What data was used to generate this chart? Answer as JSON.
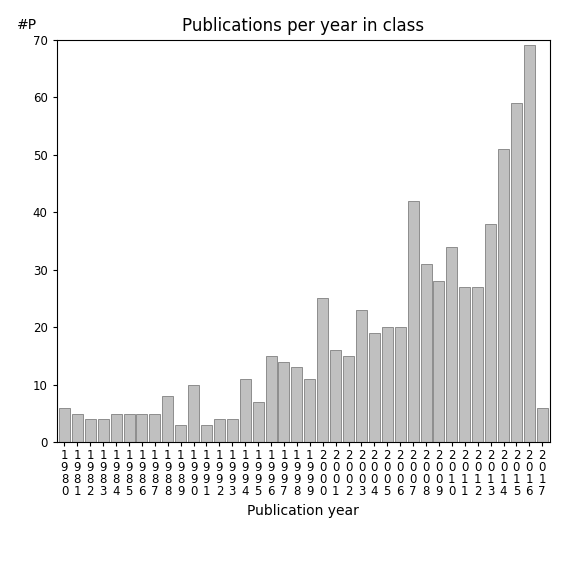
{
  "title": "Publications per year in class",
  "xlabel": "Publication year",
  "ylabel": "#P",
  "bar_color": "#c0c0c0",
  "bar_edgecolor": "#808080",
  "years": [
    1980,
    1981,
    1982,
    1983,
    1984,
    1985,
    1986,
    1987,
    1988,
    1989,
    1990,
    1991,
    1992,
    1993,
    1994,
    1995,
    1996,
    1997,
    1998,
    1999,
    2000,
    2001,
    2002,
    2003,
    2004,
    2005,
    2006,
    2007,
    2008,
    2009,
    2010,
    2011,
    2012,
    2013,
    2014,
    2015,
    2016,
    2017
  ],
  "values": [
    6,
    5,
    4,
    4,
    5,
    5,
    5,
    5,
    8,
    3,
    10,
    3,
    4,
    4,
    11,
    7,
    15,
    14,
    13,
    11,
    25,
    16,
    15,
    23,
    19,
    20,
    20,
    42,
    31,
    28,
    34,
    27,
    27,
    38,
    51,
    59,
    69,
    6
  ],
  "ylim": [
    0,
    70
  ],
  "yticks": [
    0,
    10,
    20,
    30,
    40,
    50,
    60,
    70
  ],
  "background_color": "#ffffff",
  "title_fontsize": 12,
  "axis_fontsize": 10,
  "tick_fontsize": 8.5
}
